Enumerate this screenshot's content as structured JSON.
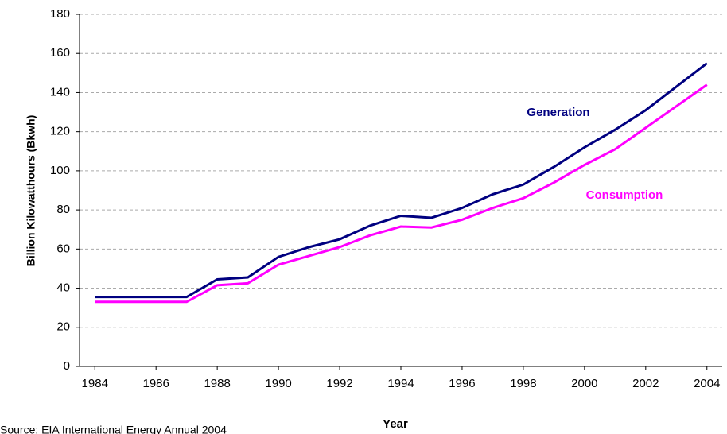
{
  "chart_data": {
    "type": "line",
    "y_label": "Billion Kilowatthours (Bkwh)",
    "x_label": "Year",
    "source": "Source: EIA International Energy Annual 2004",
    "x": [
      1984,
      1985,
      1986,
      1987,
      1988,
      1989,
      1990,
      1991,
      1992,
      1993,
      1994,
      1995,
      1996,
      1997,
      1998,
      1999,
      2000,
      2001,
      2002,
      2003,
      2004
    ],
    "series": [
      {
        "name": "Generation",
        "color": "#000080",
        "values": [
          35.5,
          35.5,
          35.5,
          35.5,
          44.5,
          45.5,
          56,
          61,
          65,
          72,
          77,
          76,
          81,
          88,
          93,
          102,
          112,
          121,
          131,
          143,
          155
        ]
      },
      {
        "name": "Consumption",
        "color": "#ff00ff",
        "values": [
          33,
          33,
          33,
          33,
          41.5,
          42.5,
          52,
          56.5,
          61,
          67,
          71.5,
          71,
          75,
          81,
          86,
          94,
          103,
          111,
          122,
          133,
          144
        ]
      }
    ],
    "xlim": [
      1983.5,
      2004.5
    ],
    "ylim": [
      0,
      180
    ],
    "xticks": [
      1984,
      1986,
      1988,
      1990,
      1992,
      1994,
      1996,
      1998,
      2000,
      2002,
      2004
    ],
    "yticks": [
      0,
      20,
      40,
      60,
      80,
      100,
      120,
      140,
      160,
      180
    ],
    "grid": true
  }
}
